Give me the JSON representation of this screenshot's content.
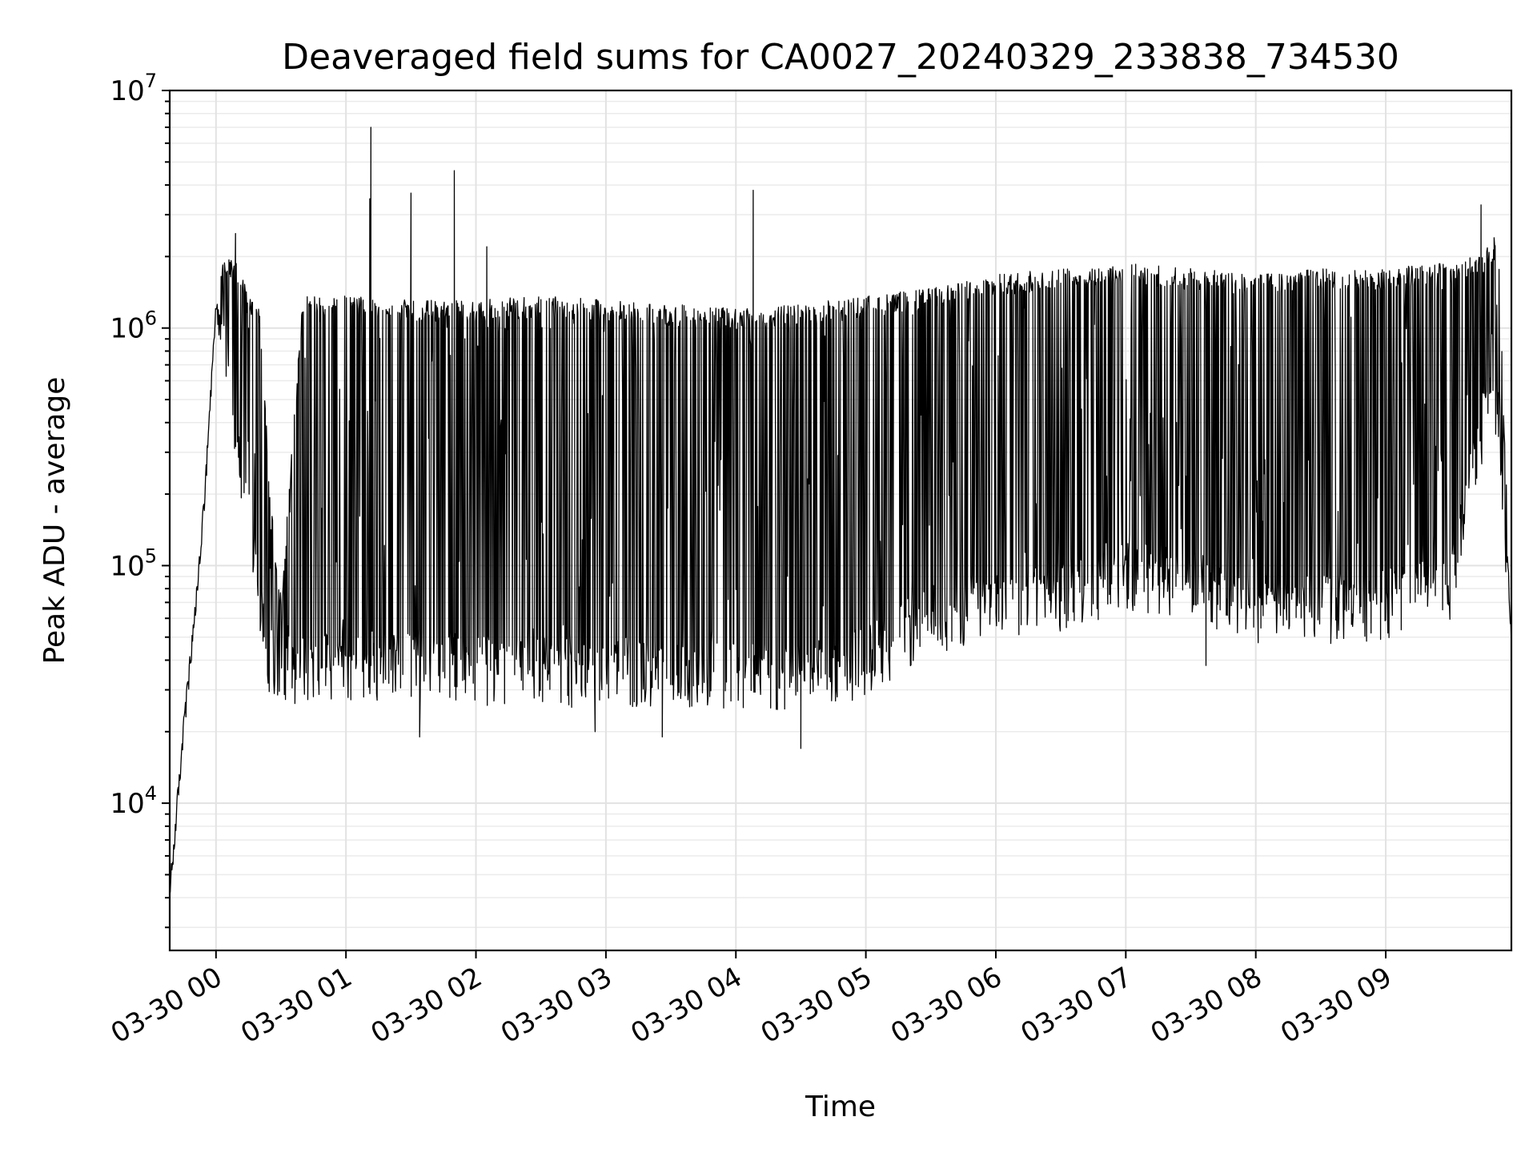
{
  "chart_data": {
    "type": "line",
    "title": "Deaveraged field sums for CA0027_20240329_233838_734530",
    "xlabel": "Time",
    "ylabel": "Peak ADU - average",
    "yscale": "log",
    "ylim": [
      2400,
      10000000
    ],
    "xlim": [
      "2024-03-29T23:38:38",
      "2024-03-30T09:58:00"
    ],
    "grid": "on (major and minor)",
    "x_ticks": [
      "03-30 00",
      "03-30 01",
      "03-30 02",
      "03-30 03",
      "03-30 04",
      "03-30 05",
      "03-30 06",
      "03-30 07",
      "03-30 08",
      "03-30 09"
    ],
    "y_ticks": [
      {
        "value": 10000,
        "base": "10",
        "exp": "4"
      },
      {
        "value": 100000,
        "base": "10",
        "exp": "5"
      },
      {
        "value": 1000000,
        "base": "10",
        "exp": "6"
      },
      {
        "value": 10000000,
        "base": "10",
        "exp": "7"
      }
    ],
    "series": [
      {
        "color": "#000000",
        "envelope": {
          "time": [
            "2024-03-29T23:38:38",
            "2024-03-29T23:45:00",
            "2024-03-29T23:50:00",
            "2024-03-29T23:55:00",
            "2024-03-30T00:00:00",
            "2024-03-30T00:05:00",
            "2024-03-30T00:10:00",
            "2024-03-30T00:15:00",
            "2024-03-30T00:20:00",
            "2024-03-30T00:25:00",
            "2024-03-30T00:30:00",
            "2024-03-30T00:40:00",
            "2024-03-30T01:00:00",
            "2024-03-30T01:30:00",
            "2024-03-30T02:00:00",
            "2024-03-30T02:30:00",
            "2024-03-30T03:00:00",
            "2024-03-30T03:30:00",
            "2024-03-30T04:00:00",
            "2024-03-30T04:30:00",
            "2024-03-30T05:00:00",
            "2024-03-30T05:30:00",
            "2024-03-30T06:00:00",
            "2024-03-30T06:30:00",
            "2024-03-30T07:00:00",
            "2024-03-30T07:30:00",
            "2024-03-30T08:00:00",
            "2024-03-30T08:30:00",
            "2024-03-30T09:00:00",
            "2024-03-30T09:30:00",
            "2024-03-30T09:45:00",
            "2024-03-30T09:52:00",
            "2024-03-30T09:58:00"
          ],
          "base": [
            4000,
            20000,
            55000,
            200000,
            1200000,
            700000,
            300000,
            150000,
            70000,
            40000,
            38000,
            37000,
            38000,
            39000,
            37000,
            36000,
            36000,
            35000,
            34000,
            33000,
            40000,
            60000,
            70000,
            75000,
            90000,
            85000,
            65000,
            65000,
            70000,
            80000,
            400000,
            500000,
            50000
          ],
          "peak": [
            4000,
            25000,
            65000,
            300000,
            1500000,
            2000000,
            1800000,
            1300000,
            1200000,
            200000,
            70000,
            1300000,
            1300000,
            1250000,
            1250000,
            1300000,
            1250000,
            1200000,
            1150000,
            1200000,
            1300000,
            1400000,
            1600000,
            1700000,
            1800000,
            1700000,
            1600000,
            1700000,
            1700000,
            1800000,
            2000000,
            2300000,
            50000
          ]
        },
        "spikes": [
          {
            "time": "2024-03-30T00:09:00",
            "value": 2500000
          },
          {
            "time": "2024-03-30T01:11:00",
            "value": 3500000
          },
          {
            "time": "2024-03-30T01:11:30",
            "value": 7000000
          },
          {
            "time": "2024-03-30T01:30:00",
            "value": 3700000
          },
          {
            "time": "2024-03-30T01:50:00",
            "value": 4600000
          },
          {
            "time": "2024-03-30T02:05:00",
            "value": 2200000
          },
          {
            "time": "2024-03-30T04:08:00",
            "value": 3800000
          },
          {
            "time": "2024-03-30T09:44:00",
            "value": 3300000
          },
          {
            "time": "2024-03-30T09:50:00",
            "value": 2400000
          }
        ],
        "dips": [
          {
            "time": "2024-03-30T01:34:00",
            "value": 19000
          },
          {
            "time": "2024-03-30T02:55:00",
            "value": 20000
          },
          {
            "time": "2024-03-30T03:26:00",
            "value": 19000
          },
          {
            "time": "2024-03-30T04:30:00",
            "value": 17000
          },
          {
            "time": "2024-03-30T07:37:00",
            "value": 38000
          }
        ]
      }
    ]
  }
}
